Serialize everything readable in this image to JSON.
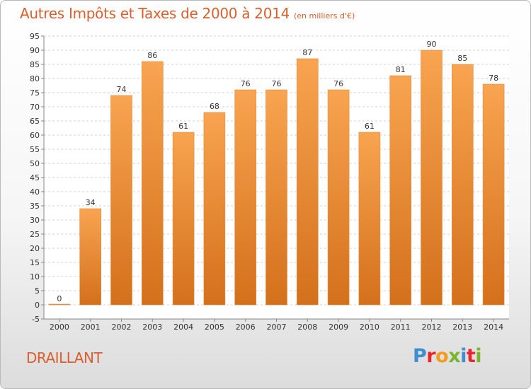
{
  "header": {
    "title": "Autres Impôts et Taxes de 2000 à 2014",
    "unit": "(en milliers d'€)"
  },
  "footer": {
    "commune": "DRAILLANT",
    "logo_text": "Proxiti"
  },
  "colors": {
    "accent": "#d9602e",
    "bar_top": "#f8a450",
    "bar_bottom": "#d4701c",
    "grid": "#d2d2d2",
    "logo_letters": [
      "#3c8fd0",
      "#e8262c",
      "#f39c1f",
      "#7ab52f",
      "#3c8fd0",
      "#e8262c",
      "#7ab52f"
    ]
  },
  "chart_data": {
    "type": "bar",
    "title": "Autres Impôts et Taxes de 2000 à 2014",
    "subtitle": "(en milliers d'€)",
    "xlabel": "",
    "ylabel": "",
    "categories": [
      "2000",
      "2001",
      "2002",
      "2003",
      "2004",
      "2005",
      "2006",
      "2007",
      "2008",
      "2009",
      "2010",
      "2011",
      "2012",
      "2013",
      "2014"
    ],
    "values": [
      0,
      34,
      74,
      86,
      61,
      68,
      76,
      76,
      87,
      76,
      61,
      81,
      90,
      85,
      78
    ],
    "data_labels": [
      "0",
      "34",
      "74",
      "86",
      "61",
      "68",
      "76",
      "76",
      "87",
      "76",
      "61",
      "81",
      "90",
      "85",
      "78"
    ],
    "ylim": [
      -5,
      95
    ],
    "yticks": [
      -5,
      0,
      5,
      10,
      15,
      20,
      25,
      30,
      35,
      40,
      45,
      50,
      55,
      60,
      65,
      70,
      75,
      80,
      85,
      90,
      95
    ],
    "grid": true,
    "legend": "none"
  }
}
